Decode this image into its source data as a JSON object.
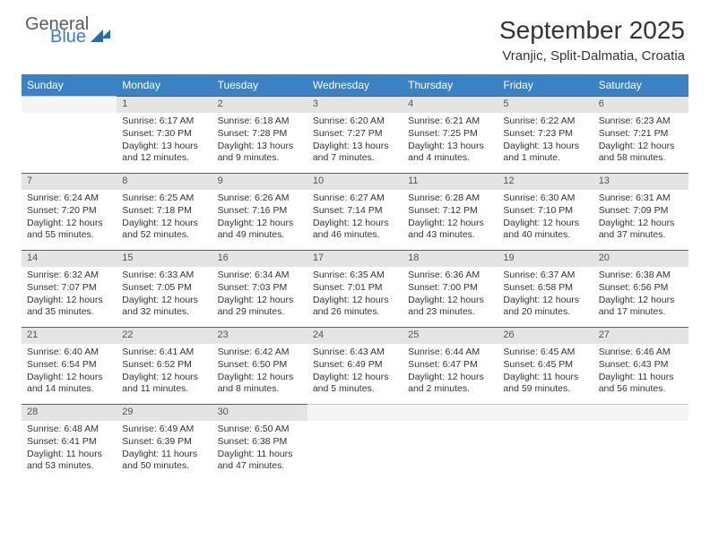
{
  "brand": {
    "part1": "General",
    "part2": "Blue"
  },
  "title": "September 2025",
  "location": "Vranjic, Split-Dalmatia, Croatia",
  "colors": {
    "header_bg": "#3b82c4",
    "header_text": "#ffffff",
    "daynum_bg": "#e4e4e4",
    "daynum_border": "#2d6aa8",
    "text": "#333333",
    "brand_gray": "#5a5a5a",
    "brand_blue": "#3b7fc4"
  },
  "weekdays": [
    "Sunday",
    "Monday",
    "Tuesday",
    "Wednesday",
    "Thursday",
    "Friday",
    "Saturday"
  ],
  "weeks": [
    [
      {
        "day": "",
        "sunrise": "",
        "sunset": "",
        "daylight": ""
      },
      {
        "day": "1",
        "sunrise": "Sunrise: 6:17 AM",
        "sunset": "Sunset: 7:30 PM",
        "daylight": "Daylight: 13 hours and 12 minutes."
      },
      {
        "day": "2",
        "sunrise": "Sunrise: 6:18 AM",
        "sunset": "Sunset: 7:28 PM",
        "daylight": "Daylight: 13 hours and 9 minutes."
      },
      {
        "day": "3",
        "sunrise": "Sunrise: 6:20 AM",
        "sunset": "Sunset: 7:27 PM",
        "daylight": "Daylight: 13 hours and 7 minutes."
      },
      {
        "day": "4",
        "sunrise": "Sunrise: 6:21 AM",
        "sunset": "Sunset: 7:25 PM",
        "daylight": "Daylight: 13 hours and 4 minutes."
      },
      {
        "day": "5",
        "sunrise": "Sunrise: 6:22 AM",
        "sunset": "Sunset: 7:23 PM",
        "daylight": "Daylight: 13 hours and 1 minute."
      },
      {
        "day": "6",
        "sunrise": "Sunrise: 6:23 AM",
        "sunset": "Sunset: 7:21 PM",
        "daylight": "Daylight: 12 hours and 58 minutes."
      }
    ],
    [
      {
        "day": "7",
        "sunrise": "Sunrise: 6:24 AM",
        "sunset": "Sunset: 7:20 PM",
        "daylight": "Daylight: 12 hours and 55 minutes."
      },
      {
        "day": "8",
        "sunrise": "Sunrise: 6:25 AM",
        "sunset": "Sunset: 7:18 PM",
        "daylight": "Daylight: 12 hours and 52 minutes."
      },
      {
        "day": "9",
        "sunrise": "Sunrise: 6:26 AM",
        "sunset": "Sunset: 7:16 PM",
        "daylight": "Daylight: 12 hours and 49 minutes."
      },
      {
        "day": "10",
        "sunrise": "Sunrise: 6:27 AM",
        "sunset": "Sunset: 7:14 PM",
        "daylight": "Daylight: 12 hours and 46 minutes."
      },
      {
        "day": "11",
        "sunrise": "Sunrise: 6:28 AM",
        "sunset": "Sunset: 7:12 PM",
        "daylight": "Daylight: 12 hours and 43 minutes."
      },
      {
        "day": "12",
        "sunrise": "Sunrise: 6:30 AM",
        "sunset": "Sunset: 7:10 PM",
        "daylight": "Daylight: 12 hours and 40 minutes."
      },
      {
        "day": "13",
        "sunrise": "Sunrise: 6:31 AM",
        "sunset": "Sunset: 7:09 PM",
        "daylight": "Daylight: 12 hours and 37 minutes."
      }
    ],
    [
      {
        "day": "14",
        "sunrise": "Sunrise: 6:32 AM",
        "sunset": "Sunset: 7:07 PM",
        "daylight": "Daylight: 12 hours and 35 minutes."
      },
      {
        "day": "15",
        "sunrise": "Sunrise: 6:33 AM",
        "sunset": "Sunset: 7:05 PM",
        "daylight": "Daylight: 12 hours and 32 minutes."
      },
      {
        "day": "16",
        "sunrise": "Sunrise: 6:34 AM",
        "sunset": "Sunset: 7:03 PM",
        "daylight": "Daylight: 12 hours and 29 minutes."
      },
      {
        "day": "17",
        "sunrise": "Sunrise: 6:35 AM",
        "sunset": "Sunset: 7:01 PM",
        "daylight": "Daylight: 12 hours and 26 minutes."
      },
      {
        "day": "18",
        "sunrise": "Sunrise: 6:36 AM",
        "sunset": "Sunset: 7:00 PM",
        "daylight": "Daylight: 12 hours and 23 minutes."
      },
      {
        "day": "19",
        "sunrise": "Sunrise: 6:37 AM",
        "sunset": "Sunset: 6:58 PM",
        "daylight": "Daylight: 12 hours and 20 minutes."
      },
      {
        "day": "20",
        "sunrise": "Sunrise: 6:38 AM",
        "sunset": "Sunset: 6:56 PM",
        "daylight": "Daylight: 12 hours and 17 minutes."
      }
    ],
    [
      {
        "day": "21",
        "sunrise": "Sunrise: 6:40 AM",
        "sunset": "Sunset: 6:54 PM",
        "daylight": "Daylight: 12 hours and 14 minutes."
      },
      {
        "day": "22",
        "sunrise": "Sunrise: 6:41 AM",
        "sunset": "Sunset: 6:52 PM",
        "daylight": "Daylight: 12 hours and 11 minutes."
      },
      {
        "day": "23",
        "sunrise": "Sunrise: 6:42 AM",
        "sunset": "Sunset: 6:50 PM",
        "daylight": "Daylight: 12 hours and 8 minutes."
      },
      {
        "day": "24",
        "sunrise": "Sunrise: 6:43 AM",
        "sunset": "Sunset: 6:49 PM",
        "daylight": "Daylight: 12 hours and 5 minutes."
      },
      {
        "day": "25",
        "sunrise": "Sunrise: 6:44 AM",
        "sunset": "Sunset: 6:47 PM",
        "daylight": "Daylight: 12 hours and 2 minutes."
      },
      {
        "day": "26",
        "sunrise": "Sunrise: 6:45 AM",
        "sunset": "Sunset: 6:45 PM",
        "daylight": "Daylight: 11 hours and 59 minutes."
      },
      {
        "day": "27",
        "sunrise": "Sunrise: 6:46 AM",
        "sunset": "Sunset: 6:43 PM",
        "daylight": "Daylight: 11 hours and 56 minutes."
      }
    ],
    [
      {
        "day": "28",
        "sunrise": "Sunrise: 6:48 AM",
        "sunset": "Sunset: 6:41 PM",
        "daylight": "Daylight: 11 hours and 53 minutes."
      },
      {
        "day": "29",
        "sunrise": "Sunrise: 6:49 AM",
        "sunset": "Sunset: 6:39 PM",
        "daylight": "Daylight: 11 hours and 50 minutes."
      },
      {
        "day": "30",
        "sunrise": "Sunrise: 6:50 AM",
        "sunset": "Sunset: 6:38 PM",
        "daylight": "Daylight: 11 hours and 47 minutes."
      },
      {
        "day": "",
        "sunrise": "",
        "sunset": "",
        "daylight": ""
      },
      {
        "day": "",
        "sunrise": "",
        "sunset": "",
        "daylight": ""
      },
      {
        "day": "",
        "sunrise": "",
        "sunset": "",
        "daylight": ""
      },
      {
        "day": "",
        "sunrise": "",
        "sunset": "",
        "daylight": ""
      }
    ]
  ]
}
